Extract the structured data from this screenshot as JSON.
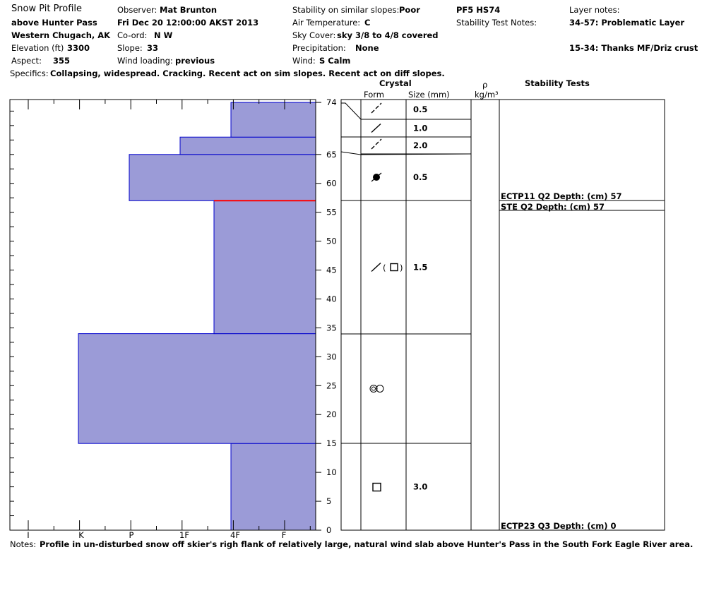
{
  "header": {
    "title": "Snow Pit Profile",
    "location": "above Hunter Pass",
    "region": "Western Chugach, AK",
    "elevation_label": "Elevation (ft)",
    "elevation_value": "3300",
    "aspect_label": "Aspect:",
    "aspect_value": "355",
    "observer_label": "Observer:",
    "observer_value": "Mat Brunton",
    "datetime": "Fri Dec 20 12:00:00 AKST 2013",
    "coord_label": "Co-ord:",
    "coord_value": "N  W",
    "slope_label": "Slope:",
    "slope_value": "33",
    "wind_loading_label": "Wind loading:",
    "wind_loading_value": "previous",
    "stability_label": "Stability on similar slopes:",
    "stability_value": "Poor",
    "air_temp_label": "Air Temperature:",
    "air_temp_value": "C",
    "sky_label": "Sky Cover:",
    "sky_value": "sky 3/8 to 4/8 covered",
    "precip_label": "Precipitation:",
    "precip_value": "None",
    "wind_label": "Wind:",
    "wind_value": "S Calm",
    "pf": "PF5 HS74",
    "stability_notes_label": "Stability Test Notes:",
    "layer_notes_label": "Layer notes:",
    "layer_note_1": "34-57: Problematic Layer",
    "layer_note_2": "15-34: Thanks MF/Driz crust",
    "specifics_label": "Specifics:",
    "specifics_value": "Collapsing, widespread. Cracking. Recent act on sim slopes. Recent act on diff slopes.",
    "notes_label": "Notes:",
    "notes_value": "Profile in un-disturbed snow off skier's righ flank of relatively large, natural wind slab above Hunter's Pass in the South Fork Eagle River area."
  },
  "columns": {
    "crystal": "Crystal",
    "form": "Form",
    "size": "Size (mm)",
    "rho": "ρ",
    "density_unit": "kg/m³",
    "stability_tests": "Stability Tests"
  },
  "chart_data": {
    "type": "bar",
    "orientation": "horizontal-step",
    "xlabel": "",
    "ylabel": "",
    "x_categories": [
      "I",
      "K",
      "P",
      "1F",
      "4F",
      "F"
    ],
    "y_ticks": [
      0,
      5,
      10,
      15,
      20,
      25,
      30,
      35,
      40,
      45,
      50,
      55,
      60,
      65,
      74
    ],
    "ylim": [
      0,
      74
    ],
    "colors": {
      "fill": "#9b9bd7",
      "edge": "#0000cc",
      "critical": "#ff0000"
    },
    "layers": [
      {
        "bottom": 0,
        "top": 15,
        "hardness": "4F",
        "hardness_value": 4.0,
        "form": "square",
        "size": "3.0"
      },
      {
        "bottom": 15,
        "top": 34,
        "hardness": "K",
        "hardness_value": 1.0,
        "form": "rounded-polycrystals",
        "size": ""
      },
      {
        "bottom": 34,
        "top": 57,
        "hardness": "4F-",
        "hardness_value": 3.7,
        "form": "decomposing-faceted",
        "size": "1.5"
      },
      {
        "bottom": 57,
        "top": 65,
        "hardness": "P",
        "hardness_value": 2.0,
        "form": "graupel",
        "size": "0.5"
      },
      {
        "bottom": 65,
        "top": 68,
        "hardness": "1F",
        "hardness_value": 3.0,
        "form": "decomposing",
        "size": "2.0"
      },
      {
        "bottom": 68,
        "top": 74,
        "hardness": "4F",
        "hardness_value": 4.0,
        "form": "new-snow",
        "size": "0.5",
        "sublayer_size": "1.0"
      }
    ],
    "critical_layer_depth": 57,
    "stability_tests": [
      {
        "text": "ECTP11 Q2 Depth: (cm) 57",
        "depth": 57
      },
      {
        "text": "STE Q2 Depth: (cm) 57",
        "depth": 57
      },
      {
        "text": "ECTP23 Q3 Depth: (cm) 0",
        "depth": 0
      }
    ]
  }
}
